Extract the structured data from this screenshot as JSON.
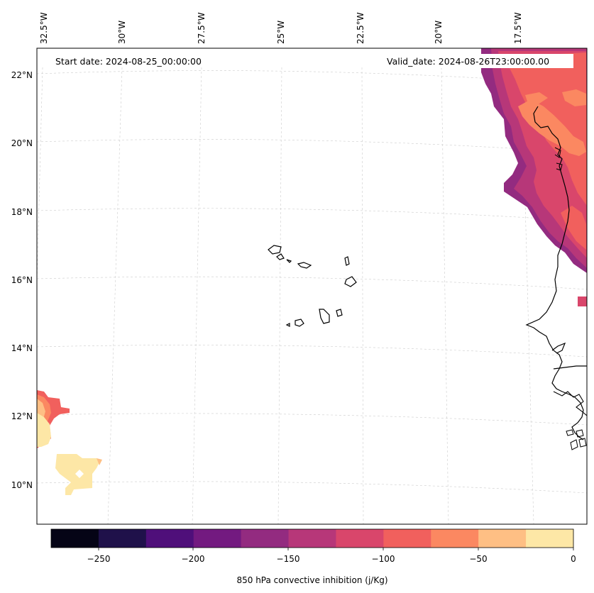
{
  "map": {
    "start_date": "Start date: 2024-08-25_00:00:00",
    "valid_date": "Valid_date: 2024-08-26T23:00:00.00",
    "lon_ticks": [
      "32.5°W",
      "30°W",
      "27.5°W",
      "25°W",
      "22.5°W",
      "20°W",
      "17.5°W"
    ],
    "lat_ticks": [
      "22°N",
      "20°N",
      "18°N",
      "16°N",
      "14°N",
      "12°N",
      "10°N"
    ]
  },
  "colorbar": {
    "label": "850 hPa convective inhibition (j/Kg)",
    "ticks": [
      "−250",
      "−200",
      "−150",
      "−100",
      "−50",
      "0"
    ],
    "levels": [
      -275,
      -250,
      -225,
      -200,
      -175,
      -150,
      -125,
      -100,
      -75,
      -50,
      -25,
      0
    ],
    "colors": [
      "#050416",
      "#1f114a",
      "#4f0f7a",
      "#731a80",
      "#932b80",
      "#b73779",
      "#d9466b",
      "#f1605d",
      "#fb8861",
      "#febf84",
      "#fde7a6"
    ]
  }
}
